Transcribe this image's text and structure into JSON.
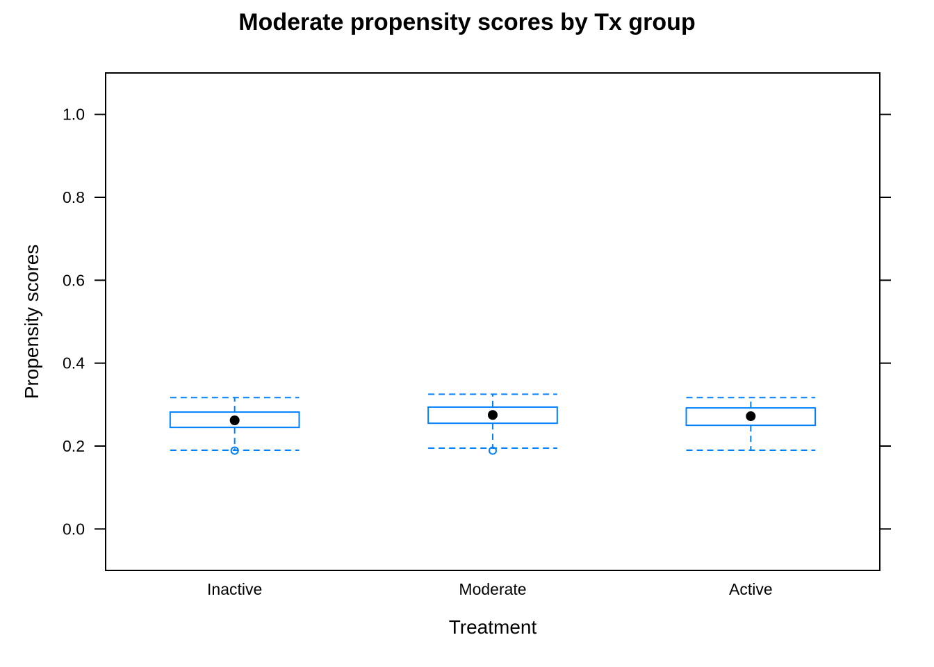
{
  "chart_data": {
    "type": "box",
    "title": "Moderate  propensity scores by Tx group",
    "xlabel": "Treatment",
    "ylabel": "Propensity scores",
    "ylim": [
      -0.1,
      1.1
    ],
    "yticks": [
      0.0,
      0.2,
      0.4,
      0.6,
      0.8,
      1.0
    ],
    "ytick_labels": [
      "0.0",
      "0.2",
      "0.4",
      "0.6",
      "0.8",
      "1.0"
    ],
    "categories": [
      "Inactive",
      "Moderate",
      "Active"
    ],
    "boxes": [
      {
        "category": "Inactive",
        "whisker_low": 0.19,
        "q1": 0.245,
        "median": 0.262,
        "q3": 0.282,
        "whisker_high": 0.317,
        "outliers": [
          0.189
        ]
      },
      {
        "category": "Moderate",
        "whisker_low": 0.195,
        "q1": 0.255,
        "median": 0.275,
        "q3": 0.294,
        "whisker_high": 0.325,
        "outliers": [
          0.189
        ]
      },
      {
        "category": "Active",
        "whisker_low": 0.19,
        "q1": 0.25,
        "median": 0.272,
        "q3": 0.292,
        "whisker_high": 0.317,
        "outliers": []
      }
    ],
    "box_color": "#0080ff",
    "median_dot_color": "#000000",
    "grid": false
  }
}
